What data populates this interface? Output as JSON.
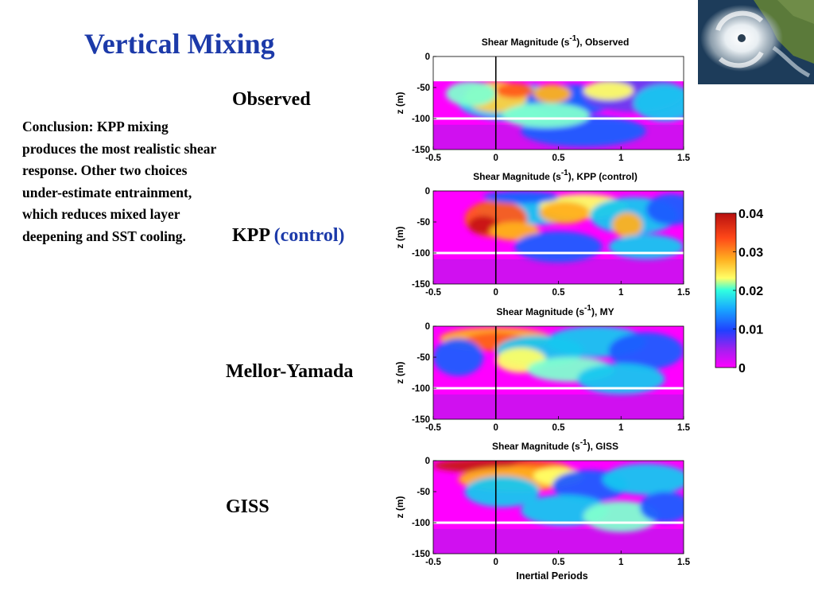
{
  "title": "Vertical Mixing",
  "conclusion": "Conclusion: KPP mixing produces the most realistic shear response. Other two choices under-estimate entrainment, which reduces mixed layer deepening and SST cooling.",
  "row_labels": [
    {
      "text": "Observed",
      "accent": ""
    },
    {
      "text": "KPP ",
      "accent": "(control)"
    },
    {
      "text": "Mellor-Yamada",
      "accent": ""
    },
    {
      "text": "GISS",
      "accent": ""
    }
  ],
  "colors": {
    "title": "#1c3aa9",
    "accent": "#1c3aa9",
    "colorbar": [
      "#ff00ff",
      "#6a3cf0",
      "#1f5cff",
      "#17c6f0",
      "#7fffd0",
      "#ffff66",
      "#ffb020",
      "#ff5a1a",
      "#c81414"
    ]
  },
  "chart_data": [
    {
      "type": "heatmap",
      "title": "Shear Magnitude (s-1), Observed",
      "title_main": "Shear Magnitude (s",
      "title_sup": "-1",
      "title_end": "), Observed",
      "xlabel": "",
      "ylabel": "z (m)",
      "xlim": [
        -0.5,
        1.5
      ],
      "ylim": [
        -150,
        0
      ],
      "xticks": [
        "-0.5",
        "0",
        "0.5",
        "1",
        "1.5"
      ],
      "yticks": [
        "0",
        "-50",
        "-100",
        "-150"
      ],
      "no_data_above_z": -40,
      "reference_depth_z": -100,
      "vertical_line_x": 0
    },
    {
      "type": "heatmap",
      "title": "Shear Magnitude (s-1), KPP (control)",
      "title_main": "Shear Magnitude (s",
      "title_sup": "-1",
      "title_end": "), KPP (control)",
      "xlabel": "",
      "ylabel": "z (m)",
      "xlim": [
        -0.5,
        1.5
      ],
      "ylim": [
        -150,
        0
      ],
      "xticks": [
        "-0.5",
        "0",
        "0.5",
        "1",
        "1.5"
      ],
      "yticks": [
        "0",
        "-50",
        "-100",
        "-150"
      ],
      "reference_depth_z": -100,
      "vertical_line_x": 0
    },
    {
      "type": "heatmap",
      "title": "Shear Magnitude (s-1), MY",
      "title_main": "Shear Magnitude (s",
      "title_sup": "-1",
      "title_end": "), MY",
      "xlabel": "",
      "ylabel": "z (m)",
      "xlim": [
        -0.5,
        1.5
      ],
      "ylim": [
        -150,
        0
      ],
      "xticks": [
        "-0.5",
        "0",
        "0.5",
        "1",
        "1.5"
      ],
      "yticks": [
        "0",
        "-50",
        "-100",
        "-150"
      ],
      "reference_depth_z": -100,
      "vertical_line_x": 0
    },
    {
      "type": "heatmap",
      "title": "Shear Magnitude (s-1), GISS",
      "title_main": "Shear Magnitude (s",
      "title_sup": "-1",
      "title_end": "), GISS",
      "xlabel": "Inertial Periods",
      "ylabel": "z (m)",
      "xlim": [
        -0.5,
        1.5
      ],
      "ylim": [
        -150,
        0
      ],
      "xticks": [
        "-0.5",
        "0",
        "0.5",
        "1",
        "1.5"
      ],
      "yticks": [
        "0",
        "-50",
        "-100",
        "-150"
      ],
      "reference_depth_z": -100,
      "vertical_line_x": 0
    }
  ],
  "colorbar": {
    "min": 0,
    "max": 0.04,
    "ticks": [
      "0.04",
      "0.03",
      "0.02",
      "0.01",
      "0"
    ]
  }
}
